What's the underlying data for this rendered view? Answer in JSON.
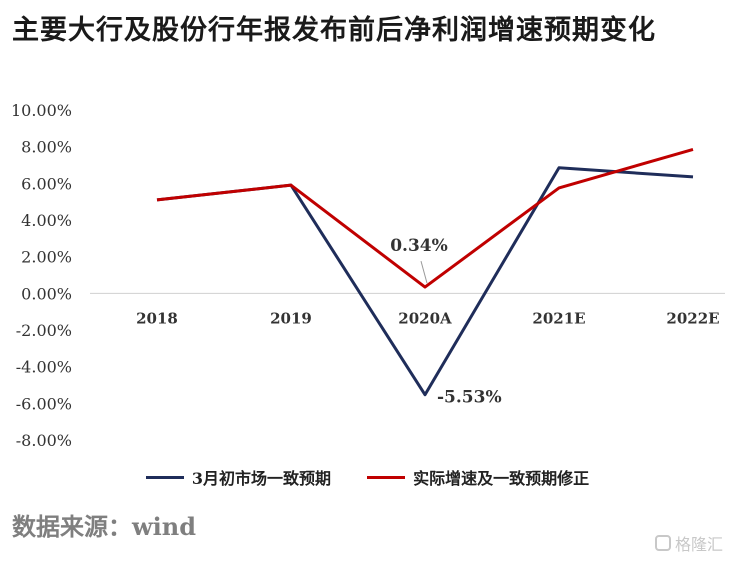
{
  "title": "主要大行及股份行年报发布前后净利润增速预期变化",
  "source": "数据来源：wind",
  "watermark": "格隆汇",
  "colors": {
    "series1": "#1f2d5a",
    "series2": "#c00000"
  },
  "chart_data": {
    "type": "line",
    "categories": [
      "2018",
      "2019",
      "2020A",
      "2021E",
      "2022E"
    ],
    "ylim": [
      -8,
      10
    ],
    "yticks": [
      "10.00%",
      "8.00%",
      "6.00%",
      "4.00%",
      "2.00%",
      "0.00%",
      "-2.00%",
      "-4.00%",
      "-6.00%",
      "-8.00%"
    ],
    "series": [
      {
        "name": "3月初市场一致预期",
        "values": [
          5.1,
          5.9,
          -5.53,
          6.85,
          6.35
        ]
      },
      {
        "name": "实际增速及一致预期修正",
        "values": [
          5.1,
          5.9,
          0.34,
          5.75,
          7.85
        ]
      }
    ],
    "annotations": [
      {
        "text": "0.34%"
      },
      {
        "text": "-5.53%"
      }
    ],
    "legend": "bottom",
    "grid": false
  }
}
